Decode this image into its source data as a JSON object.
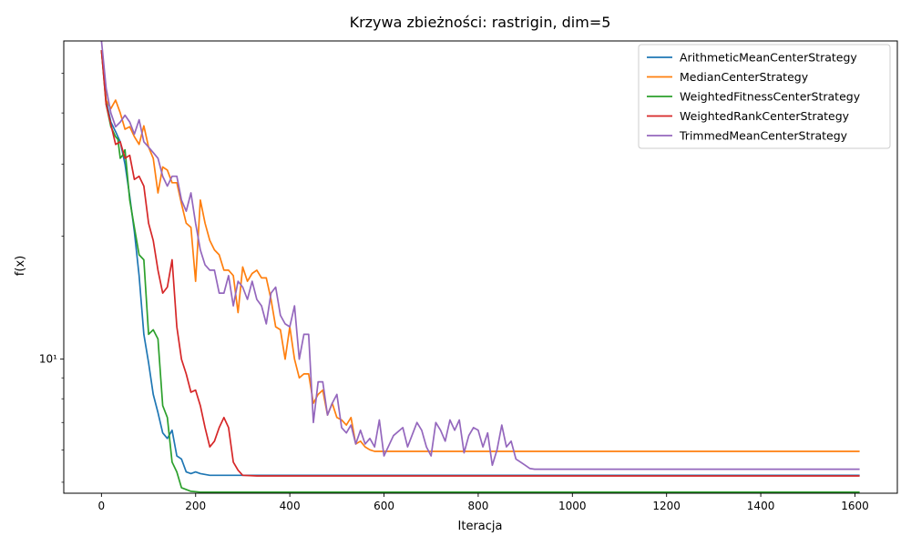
{
  "chart_data": {
    "type": "line",
    "title": "Krzywa zbieżności: rastrigin, dim=5",
    "xlabel": "Iteracja",
    "ylabel": "f(x)",
    "xlim": [
      -80,
      1690
    ],
    "ylim": [
      4.7,
      60
    ],
    "yscale": "log",
    "grid": false,
    "legend_position": "top-right",
    "x_ticks": [
      0,
      200,
      400,
      600,
      800,
      1000,
      1200,
      1400,
      1600
    ],
    "x_tick_labels": [
      "0",
      "200",
      "400",
      "600",
      "800",
      "1000",
      "1200",
      "1400",
      "1600"
    ],
    "y_ticks": [
      10
    ],
    "y_tick_labels": [
      "10¹"
    ],
    "y_minor_ticks": [
      5,
      6,
      7,
      8,
      9,
      20,
      30,
      40,
      50
    ],
    "series": [
      {
        "name": "ArithmeticMeanCenterStrategy",
        "color": "#1f77b4",
        "points": [
          [
            0,
            57
          ],
          [
            10,
            43
          ],
          [
            20,
            38
          ],
          [
            30,
            36
          ],
          [
            40,
            34
          ],
          [
            50,
            30
          ],
          [
            60,
            25
          ],
          [
            70,
            20.5
          ],
          [
            80,
            16
          ],
          [
            90,
            11.5
          ],
          [
            100,
            9.8
          ],
          [
            110,
            8.2
          ],
          [
            120,
            7.4
          ],
          [
            130,
            6.6
          ],
          [
            140,
            6.4
          ],
          [
            150,
            6.7
          ],
          [
            160,
            5.8
          ],
          [
            170,
            5.7
          ],
          [
            180,
            5.3
          ],
          [
            190,
            5.25
          ],
          [
            200,
            5.3
          ],
          [
            210,
            5.25
          ],
          [
            230,
            5.2
          ],
          [
            300,
            5.2
          ],
          [
            1610,
            5.2
          ]
        ]
      },
      {
        "name": "MedianCenterStrategy",
        "color": "#ff7f0e",
        "points": [
          [
            0,
            57
          ],
          [
            10,
            43
          ],
          [
            20,
            41
          ],
          [
            30,
            43
          ],
          [
            40,
            40
          ],
          [
            50,
            36.5
          ],
          [
            60,
            37
          ],
          [
            70,
            35
          ],
          [
            80,
            33.5
          ],
          [
            90,
            37.2
          ],
          [
            100,
            33
          ],
          [
            110,
            31
          ],
          [
            120,
            25.5
          ],
          [
            130,
            29.5
          ],
          [
            140,
            29
          ],
          [
            150,
            27
          ],
          [
            160,
            27
          ],
          [
            170,
            24
          ],
          [
            180,
            21.5
          ],
          [
            190,
            21
          ],
          [
            200,
            15.5
          ],
          [
            210,
            24.5
          ],
          [
            220,
            21.5
          ],
          [
            230,
            19.5
          ],
          [
            240,
            18.5
          ],
          [
            250,
            18
          ],
          [
            260,
            16.5
          ],
          [
            270,
            16.5
          ],
          [
            280,
            16
          ],
          [
            290,
            13
          ],
          [
            300,
            16.8
          ],
          [
            310,
            15.5
          ],
          [
            320,
            16.2
          ],
          [
            330,
            16.5
          ],
          [
            340,
            15.8
          ],
          [
            350,
            15.8
          ],
          [
            360,
            14
          ],
          [
            370,
            12
          ],
          [
            380,
            11.8
          ],
          [
            390,
            10
          ],
          [
            400,
            12
          ],
          [
            410,
            10
          ],
          [
            420,
            9
          ],
          [
            430,
            9.2
          ],
          [
            440,
            9.2
          ],
          [
            450,
            7.8
          ],
          [
            460,
            8.2
          ],
          [
            470,
            8.4
          ],
          [
            480,
            7.3
          ],
          [
            490,
            7.8
          ],
          [
            500,
            7.2
          ],
          [
            510,
            7.1
          ],
          [
            520,
            6.9
          ],
          [
            530,
            7.2
          ],
          [
            540,
            6.2
          ],
          [
            550,
            6.3
          ],
          [
            560,
            6.1
          ],
          [
            570,
            6
          ],
          [
            580,
            5.95
          ],
          [
            1610,
            5.95
          ]
        ]
      },
      {
        "name": "WeightedFitnessCenterStrategy",
        "color": "#2ca02c",
        "points": [
          [
            0,
            57
          ],
          [
            10,
            42
          ],
          [
            20,
            37
          ],
          [
            30,
            35
          ],
          [
            35,
            34.5
          ],
          [
            40,
            31
          ],
          [
            45,
            31.5
          ],
          [
            50,
            32.5
          ],
          [
            60,
            24.5
          ],
          [
            70,
            21
          ],
          [
            80,
            18
          ],
          [
            90,
            17.5
          ],
          [
            100,
            11.5
          ],
          [
            110,
            11.8
          ],
          [
            120,
            11.2
          ],
          [
            130,
            7.7
          ],
          [
            140,
            7.2
          ],
          [
            150,
            5.6
          ],
          [
            160,
            5.3
          ],
          [
            170,
            4.85
          ],
          [
            180,
            4.8
          ],
          [
            190,
            4.75
          ],
          [
            210,
            4.73
          ],
          [
            300,
            4.73
          ],
          [
            1610,
            4.73
          ]
        ]
      },
      {
        "name": "WeightedRankCenterStrategy",
        "color": "#d62728",
        "points": [
          [
            0,
            57
          ],
          [
            10,
            42
          ],
          [
            20,
            37.5
          ],
          [
            30,
            33.5
          ],
          [
            40,
            34
          ],
          [
            50,
            31
          ],
          [
            60,
            31.5
          ],
          [
            70,
            27.5
          ],
          [
            80,
            28
          ],
          [
            90,
            26.5
          ],
          [
            100,
            21.5
          ],
          [
            110,
            19.5
          ],
          [
            120,
            16.5
          ],
          [
            130,
            14.5
          ],
          [
            140,
            15
          ],
          [
            150,
            17.5
          ],
          [
            160,
            12
          ],
          [
            170,
            10
          ],
          [
            180,
            9.2
          ],
          [
            190,
            8.3
          ],
          [
            200,
            8.4
          ],
          [
            210,
            7.7
          ],
          [
            220,
            6.8
          ],
          [
            230,
            6.1
          ],
          [
            240,
            6.3
          ],
          [
            250,
            6.8
          ],
          [
            260,
            7.2
          ],
          [
            270,
            6.8
          ],
          [
            280,
            5.6
          ],
          [
            290,
            5.35
          ],
          [
            300,
            5.2
          ],
          [
            330,
            5.18
          ],
          [
            1610,
            5.18
          ]
        ]
      },
      {
        "name": "TrimmedMeanCenterStrategy",
        "color": "#9467bd",
        "points": [
          [
            0,
            60
          ],
          [
            10,
            46
          ],
          [
            20,
            40
          ],
          [
            30,
            37
          ],
          [
            40,
            38
          ],
          [
            50,
            39.5
          ],
          [
            60,
            38
          ],
          [
            70,
            35.5
          ],
          [
            80,
            38.5
          ],
          [
            90,
            34
          ],
          [
            100,
            33
          ],
          [
            110,
            32
          ],
          [
            120,
            31
          ],
          [
            130,
            28
          ],
          [
            140,
            26.5
          ],
          [
            150,
            28
          ],
          [
            160,
            28
          ],
          [
            170,
            24.5
          ],
          [
            180,
            23
          ],
          [
            190,
            25.5
          ],
          [
            200,
            21.5
          ],
          [
            210,
            18.5
          ],
          [
            220,
            17
          ],
          [
            230,
            16.5
          ],
          [
            240,
            16.5
          ],
          [
            250,
            14.5
          ],
          [
            260,
            14.5
          ],
          [
            270,
            16
          ],
          [
            280,
            13.5
          ],
          [
            290,
            15.5
          ],
          [
            300,
            15
          ],
          [
            310,
            14
          ],
          [
            320,
            15.5
          ],
          [
            330,
            14
          ],
          [
            340,
            13.5
          ],
          [
            350,
            12.2
          ],
          [
            360,
            14.5
          ],
          [
            370,
            15
          ],
          [
            380,
            12.8
          ],
          [
            390,
            12.2
          ],
          [
            400,
            12
          ],
          [
            410,
            13.5
          ],
          [
            420,
            10
          ],
          [
            430,
            11.5
          ],
          [
            440,
            11.5
          ],
          [
            450,
            7
          ],
          [
            460,
            8.8
          ],
          [
            470,
            8.8
          ],
          [
            480,
            7.3
          ],
          [
            490,
            7.8
          ],
          [
            500,
            8.2
          ],
          [
            510,
            6.8
          ],
          [
            520,
            6.6
          ],
          [
            530,
            6.9
          ],
          [
            540,
            6.2
          ],
          [
            550,
            6.7
          ],
          [
            560,
            6.2
          ],
          [
            570,
            6.4
          ],
          [
            580,
            6.1
          ],
          [
            590,
            7.1
          ],
          [
            600,
            5.8
          ],
          [
            620,
            6.5
          ],
          [
            640,
            6.8
          ],
          [
            650,
            6.1
          ],
          [
            670,
            7
          ],
          [
            680,
            6.7
          ],
          [
            690,
            6.1
          ],
          [
            700,
            5.8
          ],
          [
            710,
            7
          ],
          [
            720,
            6.7
          ],
          [
            730,
            6.3
          ],
          [
            740,
            7.1
          ],
          [
            750,
            6.7
          ],
          [
            760,
            7.1
          ],
          [
            770,
            5.9
          ],
          [
            780,
            6.5
          ],
          [
            790,
            6.8
          ],
          [
            800,
            6.7
          ],
          [
            810,
            6.1
          ],
          [
            820,
            6.6
          ],
          [
            830,
            5.5
          ],
          [
            840,
            6
          ],
          [
            850,
            6.9
          ],
          [
            860,
            6.1
          ],
          [
            870,
            6.3
          ],
          [
            880,
            5.7
          ],
          [
            890,
            5.6
          ],
          [
            900,
            5.5
          ],
          [
            910,
            5.4
          ],
          [
            920,
            5.38
          ],
          [
            1610,
            5.38
          ]
        ]
      }
    ]
  }
}
